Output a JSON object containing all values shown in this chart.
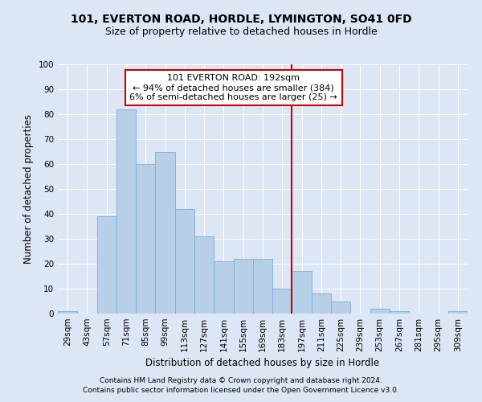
{
  "title1": "101, EVERTON ROAD, HORDLE, LYMINGTON, SO41 0FD",
  "title2": "Size of property relative to detached houses in Hordle",
  "xlabel": "Distribution of detached houses by size in Hordle",
  "ylabel": "Number of detached properties",
  "categories": [
    "29sqm",
    "43sqm",
    "57sqm",
    "71sqm",
    "85sqm",
    "99sqm",
    "113sqm",
    "127sqm",
    "141sqm",
    "155sqm",
    "169sqm",
    "183sqm",
    "197sqm",
    "211sqm",
    "225sqm",
    "239sqm",
    "253sqm",
    "267sqm",
    "281sqm",
    "295sqm",
    "309sqm"
  ],
  "values": [
    1,
    0,
    39,
    82,
    60,
    65,
    42,
    31,
    21,
    22,
    22,
    10,
    17,
    8,
    5,
    0,
    2,
    1,
    0,
    0,
    1
  ],
  "bar_color": "#b8cfe8",
  "bar_edge_color": "#7aadd4",
  "background_color": "#dce6f5",
  "grid_color": "#ffffff",
  "vline_color": "#cc0000",
  "annotation_title": "101 EVERTON ROAD: 192sqm",
  "annotation_line1": "← 94% of detached houses are smaller (384)",
  "annotation_line2": "6% of semi-detached houses are larger (25) →",
  "annotation_box_color": "#cc0000",
  "ylim": [
    0,
    100
  ],
  "yticks": [
    0,
    10,
    20,
    30,
    40,
    50,
    60,
    70,
    80,
    90,
    100
  ],
  "footnote1": "Contains HM Land Registry data © Crown copyright and database right 2024.",
  "footnote2": "Contains public sector information licensed under the Open Government Licence v3.0.",
  "title1_fontsize": 10,
  "title2_fontsize": 9,
  "axis_label_fontsize": 8.5,
  "tick_fontsize": 7.5,
  "annotation_fontsize": 8,
  "footnote_fontsize": 6.5
}
